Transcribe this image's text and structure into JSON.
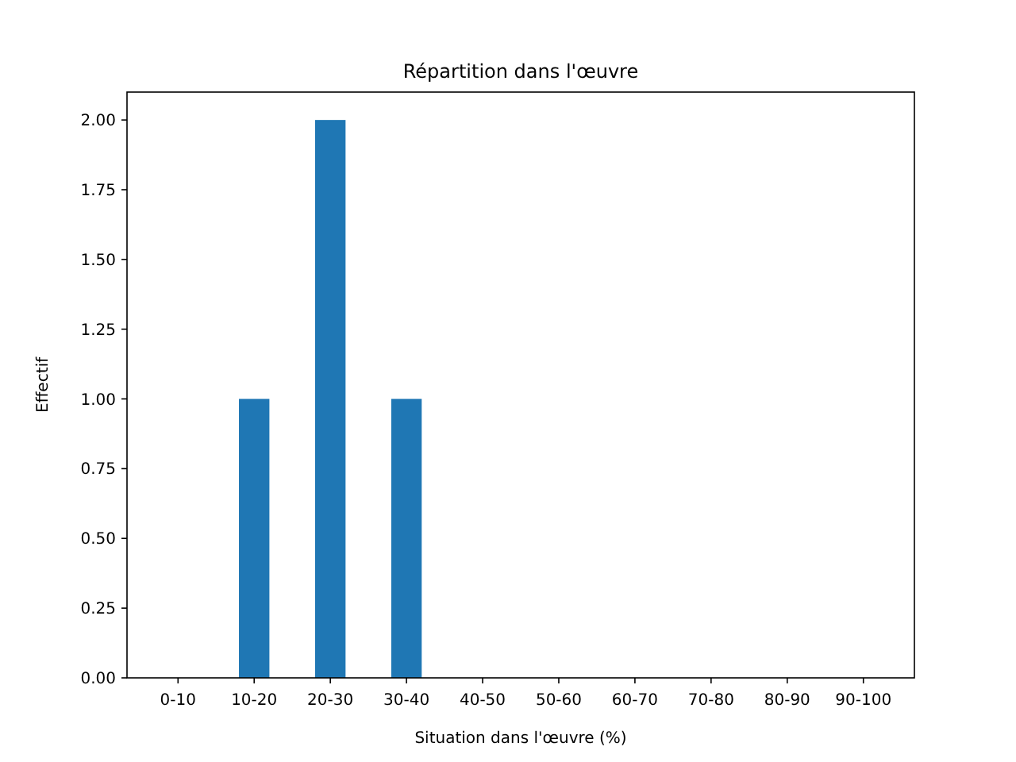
{
  "chart_data": {
    "type": "bar",
    "title": "Répartition dans l'œuvre",
    "xlabel": "Situation dans l'œuvre (%)",
    "ylabel": "Effectif",
    "categories": [
      "0-10",
      "10-20",
      "20-30",
      "30-40",
      "40-50",
      "50-60",
      "60-70",
      "70-80",
      "80-90",
      "90-100"
    ],
    "values": [
      0,
      1,
      2,
      1,
      0,
      0,
      0,
      0,
      0,
      0
    ],
    "color": "#1f77b4",
    "ylim": [
      0,
      2.1
    ],
    "yticks": [
      {
        "value": 0,
        "label": "0.00"
      },
      {
        "value": 0.25,
        "label": "0.25"
      },
      {
        "value": 0.5,
        "label": "0.50"
      },
      {
        "value": 0.75,
        "label": "0.75"
      },
      {
        "value": 1,
        "label": "1.00"
      },
      {
        "value": 1.25,
        "label": "1.25"
      },
      {
        "value": 1.5,
        "label": "1.50"
      },
      {
        "value": 1.75,
        "label": "1.75"
      },
      {
        "value": 2,
        "label": "2.00"
      }
    ],
    "grid": false
  }
}
